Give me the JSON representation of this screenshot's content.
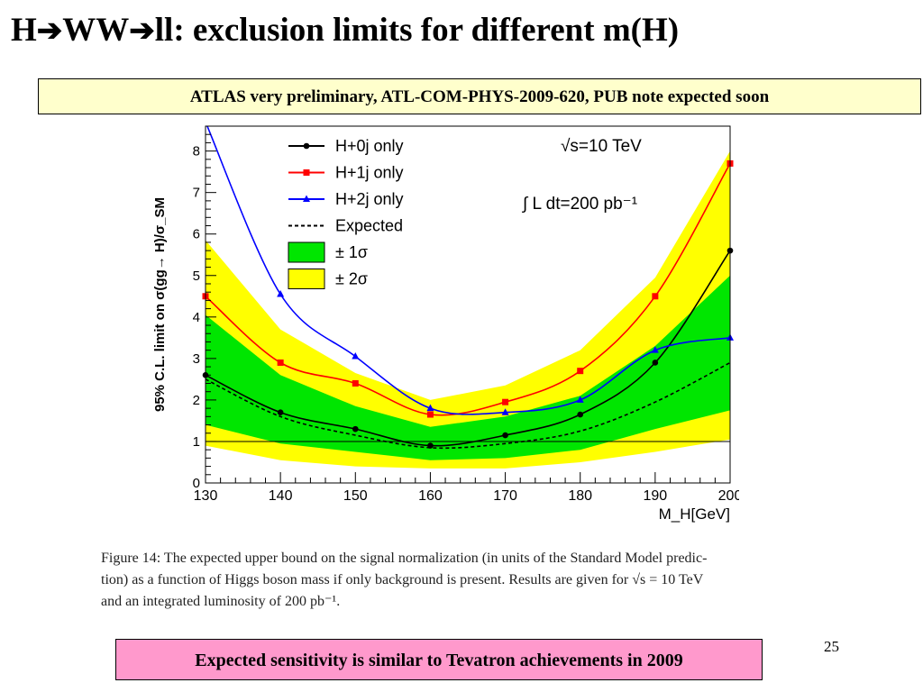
{
  "slide": {
    "title_parts": [
      "H",
      "WW",
      "ll: exclusion limits for different m(H)"
    ],
    "title_arrow": "➔",
    "banner": "ATLAS very preliminary, ATL-COM-PHYS-2009-620, PUB note expected soon",
    "caption_lines": [
      "Figure 14: The expected upper bound on the signal normalization (in units of the Standard Model predic-",
      "tion) as a function of Higgs boson mass if only background is present. Results are given for √s = 10 TeV",
      "and an integrated luminosity of 200 pb⁻¹."
    ],
    "slide_number": "25",
    "bottom_note": "Expected sensitivity is similar to Tevatron achievements in 2009"
  },
  "chart_data": {
    "type": "line",
    "xlabel": "M_H[GeV]",
    "ylabel": "95% C.L. limit on σ(gg→ H)/σ_SM",
    "xlim": [
      130,
      200
    ],
    "ylim": [
      0,
      8.6
    ],
    "x_ticks": [
      130,
      140,
      150,
      160,
      170,
      180,
      190,
      200
    ],
    "y_ticks": [
      0,
      1,
      2,
      3,
      4,
      5,
      6,
      7,
      8
    ],
    "grid": false,
    "legend_position": "top-left",
    "annotations": [
      "√s=10 TeV",
      "∫ L dt=200 pb⁻¹"
    ],
    "reference_line": 1,
    "x": [
      130,
      140,
      150,
      160,
      170,
      180,
      190,
      200
    ],
    "series": [
      {
        "name": "H+0j only",
        "color": "#000000",
        "marker": "circle",
        "style": "solid",
        "values": [
          2.6,
          1.7,
          1.3,
          0.9,
          1.15,
          1.65,
          2.9,
          5.6
        ]
      },
      {
        "name": "H+1j only",
        "color": "#ff0000",
        "marker": "square",
        "style": "solid",
        "values": [
          4.5,
          2.9,
          2.4,
          1.65,
          1.95,
          2.7,
          4.5,
          7.7
        ]
      },
      {
        "name": "H+2j only",
        "color": "#0000ff",
        "marker": "triangle",
        "style": "solid",
        "values": [
          8.7,
          4.55,
          3.05,
          1.8,
          1.7,
          2.0,
          3.2,
          3.5
        ]
      },
      {
        "name": "Expected",
        "color": "#000000",
        "marker": "none",
        "style": "dashed",
        "values": [
          2.5,
          1.6,
          1.15,
          0.85,
          0.95,
          1.25,
          1.95,
          2.9
        ]
      }
    ],
    "bands": [
      {
        "name": "± 2σ",
        "color": "#ffff00",
        "lower": [
          0.9,
          0.55,
          0.4,
          0.35,
          0.35,
          0.5,
          0.75,
          1.05
        ],
        "upper": [
          5.85,
          3.7,
          2.65,
          2.0,
          2.35,
          3.2,
          4.95,
          8.0
        ]
      },
      {
        "name": "± 1σ",
        "color": "#00e600",
        "lower": [
          1.4,
          0.95,
          0.75,
          0.55,
          0.6,
          0.8,
          1.3,
          1.75
        ],
        "upper": [
          4.05,
          2.6,
          1.85,
          1.35,
          1.6,
          2.1,
          3.3,
          5.0
        ]
      }
    ],
    "legend": [
      {
        "label": "H+0j only",
        "kind": "line",
        "color": "#000000",
        "marker": "circle"
      },
      {
        "label": "H+1j only",
        "kind": "line",
        "color": "#ff0000",
        "marker": "square"
      },
      {
        "label": "H+2j only",
        "kind": "line",
        "color": "#0000ff",
        "marker": "triangle"
      },
      {
        "label": "Expected",
        "kind": "dashed",
        "color": "#000000",
        "marker": "none"
      },
      {
        "label": "± 1σ",
        "kind": "box",
        "color": "#00e600"
      },
      {
        "label": "± 2σ",
        "kind": "box",
        "color": "#ffff00"
      }
    ]
  }
}
